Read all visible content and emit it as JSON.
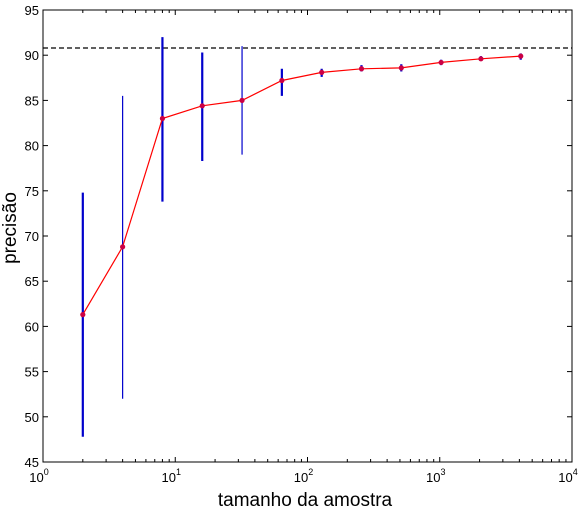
{
  "chart_data": {
    "type": "line",
    "title": "",
    "xlabel": "tamanho da amostra",
    "ylabel": "precisão",
    "xscale": "log",
    "xlim": [
      1,
      10000
    ],
    "ylim": [
      45,
      95
    ],
    "x_ticks": [
      {
        "base": "10",
        "exp": "0"
      },
      {
        "base": "10",
        "exp": "1"
      },
      {
        "base": "10",
        "exp": "2"
      },
      {
        "base": "10",
        "exp": "3"
      },
      {
        "base": "10",
        "exp": "4"
      }
    ],
    "y_ticks": [
      "45",
      "50",
      "55",
      "60",
      "65",
      "70",
      "75",
      "80",
      "85",
      "90",
      "95"
    ],
    "grid": false,
    "legend": "none",
    "reference_line": {
      "y": 90.8,
      "style": "dashed",
      "color": "#000000"
    },
    "series": [
      {
        "color": "#ff0000",
        "marker_color": "#cc0044",
        "errorbar_color": "#0000cc",
        "points": [
          {
            "x": 2,
            "y": 61.3,
            "low": 47.8,
            "high": 74.8
          },
          {
            "x": 4,
            "y": 68.8,
            "low": 52.0,
            "high": 85.5
          },
          {
            "x": 8,
            "y": 83.0,
            "low": 73.8,
            "high": 92.0
          },
          {
            "x": 16,
            "y": 84.4,
            "low": 78.3,
            "high": 90.3
          },
          {
            "x": 32,
            "y": 85.0,
            "low": 79.0,
            "high": 91.0
          },
          {
            "x": 64,
            "y": 87.2,
            "low": 85.5,
            "high": 88.5
          },
          {
            "x": 128,
            "y": 88.1,
            "low": 87.6,
            "high": 88.5
          },
          {
            "x": 256,
            "y": 88.5,
            "low": 88.2,
            "high": 88.9
          },
          {
            "x": 512,
            "y": 88.6,
            "low": 88.2,
            "high": 89.0
          },
          {
            "x": 1024,
            "y": 89.2,
            "low": 88.9,
            "high": 89.5
          },
          {
            "x": 2048,
            "y": 89.6,
            "low": 89.4,
            "high": 89.9
          },
          {
            "x": 4096,
            "y": 89.9,
            "low": 89.5,
            "high": 90.2
          }
        ]
      }
    ]
  }
}
